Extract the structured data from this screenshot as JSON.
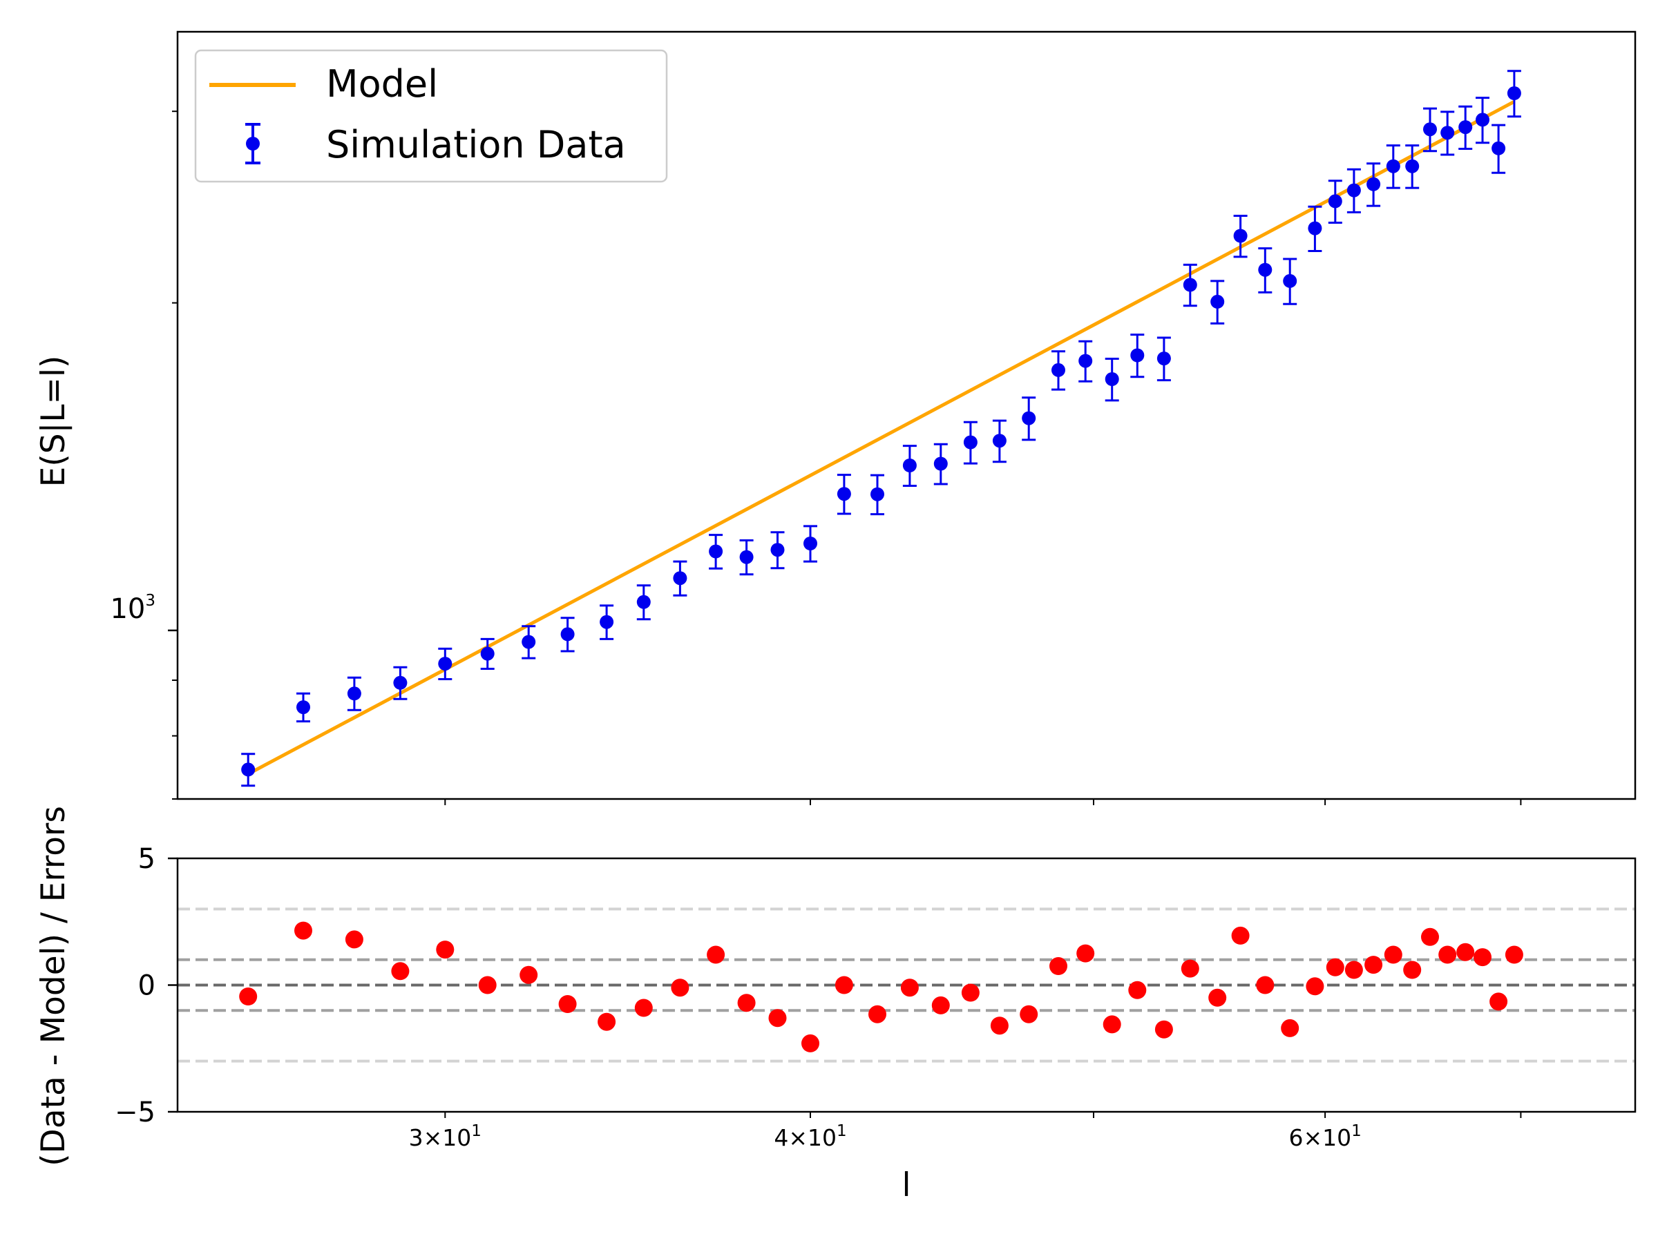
{
  "chart_data": [
    {
      "type": "scatter",
      "xscale": "log",
      "yscale": "log",
      "xlabel": "",
      "ylabel": "E(S|L=l)",
      "xlim": [
        24.3,
        76.6
      ],
      "ylim": [
        700,
        3550
      ],
      "y_major_tick": {
        "value": 1000,
        "base": "10",
        "exponent": "3"
      },
      "legend": {
        "placement": "top-left",
        "entries": [
          "Model",
          "Simulation Data"
        ]
      },
      "colors": {
        "model": "#ffa500",
        "data": "#0000ee"
      },
      "series": [
        {
          "name": "Model",
          "kind": "line",
          "x": [
            25.69,
            69.61
          ],
          "y": [
            738,
            3060
          ]
        },
        {
          "name": "Simulation Data",
          "kind": "errorbar",
          "x": [
            25.69,
            26.83,
            27.93,
            28.96,
            30.0,
            31.02,
            32.04,
            33.04,
            34.07,
            35.08,
            36.1,
            37.13,
            38.04,
            38.98,
            40.0,
            41.08,
            42.17,
            43.26,
            44.33,
            45.38,
            46.43,
            47.51,
            48.63,
            49.68,
            50.73,
            51.75,
            52.85,
            53.95,
            55.12,
            56.13,
            57.23,
            58.36,
            59.52,
            60.48,
            61.38,
            62.33,
            63.31,
            64.26,
            65.17,
            66.07,
            67.01,
            67.92,
            68.78,
            69.64
          ],
          "y": [
            745,
            850,
            875,
            895,
            932,
            952,
            976,
            992,
            1018,
            1062,
            1117,
            1182,
            1168,
            1186,
            1202,
            1335,
            1334,
            1418,
            1423,
            1489,
            1494,
            1567,
            1735,
            1769,
            1702,
            1790,
            1778,
            2078,
            2005,
            2305,
            2145,
            2095,
            2342,
            2480,
            2538,
            2571,
            2671,
            2671,
            2888,
            2867,
            2901,
            2947,
            2774,
            3117
          ],
          "yerr": [
            25,
            25,
            30,
            30,
            30,
            30,
            33,
            35,
            36,
            38,
            40,
            42,
            42,
            45,
            45,
            55,
            55,
            60,
            60,
            65,
            65,
            70,
            70,
            75,
            75,
            80,
            80,
            90,
            90,
            100,
            100,
            100,
            110,
            110,
            115,
            115,
            120,
            120,
            130,
            130,
            130,
            140,
            140,
            150
          ]
        }
      ]
    },
    {
      "type": "scatter",
      "xscale": "log",
      "xlabel": "l",
      "ylabel": "(Data - Model) / Errors",
      "xlim": [
        24.3,
        76.6
      ],
      "ylim": [
        -5,
        5
      ],
      "yticks": [
        5,
        0,
        -5
      ],
      "ytick_labels": [
        "5",
        "0",
        "−5"
      ],
      "xtick_labels": [
        {
          "value": 30,
          "mantissa": "3",
          "times": "×",
          "base": "10",
          "exponent": "1"
        },
        {
          "value": 40,
          "mantissa": "4",
          "times": "×",
          "base": "10",
          "exponent": "1"
        },
        {
          "value": 60,
          "mantissa": "6",
          "times": "×",
          "base": "10",
          "exponent": "1"
        }
      ],
      "minor_xticks": [
        50,
        70
      ],
      "reference_lines": [
        {
          "y": 3,
          "color": "#d3d3d3"
        },
        {
          "y": 1,
          "color": "#a0a0a0"
        },
        {
          "y": 0,
          "color": "#696969"
        },
        {
          "y": -1,
          "color": "#a0a0a0"
        },
        {
          "y": -3,
          "color": "#d3d3d3"
        }
      ],
      "colors": {
        "residual": "#ff0000"
      },
      "series": [
        {
          "name": "",
          "x": [
            25.69,
            26.83,
            27.93,
            28.96,
            30.0,
            31.02,
            32.04,
            33.04,
            34.07,
            35.08,
            36.1,
            37.13,
            38.04,
            38.98,
            40.0,
            41.08,
            42.17,
            43.26,
            44.33,
            45.38,
            46.43,
            47.51,
            48.63,
            49.68,
            50.73,
            51.75,
            52.85,
            53.95,
            55.12,
            56.13,
            57.23,
            58.36,
            59.52,
            60.48,
            61.38,
            62.33,
            63.31,
            64.26,
            65.17,
            66.07,
            67.01,
            67.92,
            68.78,
            69.64
          ],
          "y": [
            -0.45,
            2.15,
            1.8,
            0.55,
            1.4,
            0.0,
            0.4,
            -0.75,
            -1.45,
            -0.9,
            -0.1,
            1.2,
            -0.7,
            -1.3,
            -2.3,
            0.0,
            -1.15,
            -0.1,
            -0.8,
            -0.3,
            -1.6,
            -1.15,
            0.75,
            1.25,
            -1.55,
            -0.2,
            -1.75,
            0.65,
            -0.5,
            1.95,
            0.0,
            -1.7,
            -0.05,
            0.7,
            0.6,
            0.8,
            1.2,
            0.6,
            1.9,
            1.2,
            1.3,
            1.1,
            -0.65,
            1.2
          ]
        }
      ]
    }
  ]
}
